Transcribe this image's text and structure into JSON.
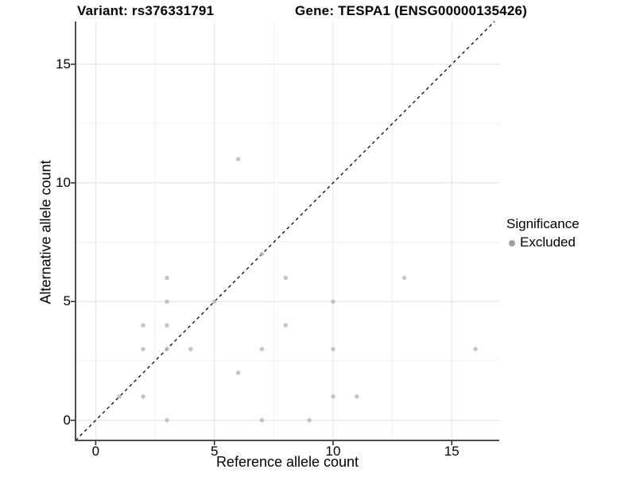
{
  "figure": {
    "title_left": "Variant: rs376331791",
    "title_right": "Gene: TESPA1 (ENSG00000135426)"
  },
  "chart_data": {
    "type": "scatter",
    "title": "Variant: rs376331791   Gene: TESPA1 (ENSG00000135426)",
    "xlabel": "Reference allele count",
    "ylabel": "Alternative allele count",
    "xlim": [
      -0.85,
      17.0
    ],
    "ylim": [
      -0.85,
      16.8
    ],
    "x_ticks": [
      0,
      5,
      10,
      15
    ],
    "y_ticks": [
      0,
      5,
      10,
      15
    ],
    "x_minor_gridlines": [
      2.5,
      7.5,
      12.5
    ],
    "y_minor_gridlines": [
      2.5,
      7.5,
      12.5
    ],
    "grid": "major and minor, light gray on white",
    "legend_position": "right",
    "identity_line": {
      "equation": "y = x",
      "style": "dashed",
      "color": "#000000"
    },
    "series": [
      {
        "name": "Excluded",
        "marker_color": "#b5b5b5",
        "marker_opacity": 0.8,
        "points": [
          [
            1,
            1
          ],
          [
            2,
            1
          ],
          [
            2,
            3
          ],
          [
            2,
            4
          ],
          [
            3,
            0
          ],
          [
            3,
            3
          ],
          [
            3,
            4
          ],
          [
            3,
            5
          ],
          [
            3,
            6
          ],
          [
            4,
            3
          ],
          [
            5,
            5
          ],
          [
            6,
            2
          ],
          [
            6,
            11
          ],
          [
            7,
            0
          ],
          [
            7,
            3
          ],
          [
            7,
            7
          ],
          [
            8,
            4
          ],
          [
            8,
            6
          ],
          [
            9,
            0
          ],
          [
            10,
            1
          ],
          [
            10,
            3
          ],
          [
            10,
            5
          ],
          [
            11,
            1
          ],
          [
            13,
            6
          ],
          [
            16,
            3
          ]
        ]
      }
    ]
  },
  "legend": {
    "title": "Significance",
    "entries": [
      {
        "label": "Excluded",
        "color": "#9e9e9e"
      }
    ]
  },
  "colors": {
    "background": "#ffffff",
    "major_grid": "#e2e2e2",
    "minor_grid": "#f0f0f0",
    "axis_line": "#4d4d4d",
    "tick_mark": "#222222",
    "point": "#b5b5b5",
    "identity_line": "#000000"
  }
}
